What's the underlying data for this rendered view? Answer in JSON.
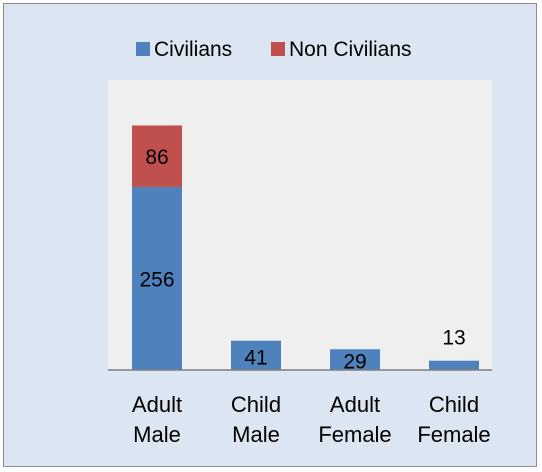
{
  "chart_data": {
    "type": "bar",
    "stacked": true,
    "categories": [
      [
        "Adult",
        "Male"
      ],
      [
        "Child",
        "Male"
      ],
      [
        "Adult",
        "Female"
      ],
      [
        "Child",
        "Female"
      ]
    ],
    "series": [
      {
        "name": "Civilians",
        "values": [
          256,
          41,
          29,
          13
        ],
        "color": "#4f81bd"
      },
      {
        "name": "Non Civilians",
        "values": [
          86,
          0,
          0,
          0
        ],
        "color": "#c0504d"
      }
    ],
    "legend_position": "top",
    "ylim": [
      0,
      400
    ],
    "grid": false,
    "colors": {
      "chart_area": "#dce6f2",
      "plot_area": "#efefef",
      "axis": "#7f7f7f"
    }
  }
}
